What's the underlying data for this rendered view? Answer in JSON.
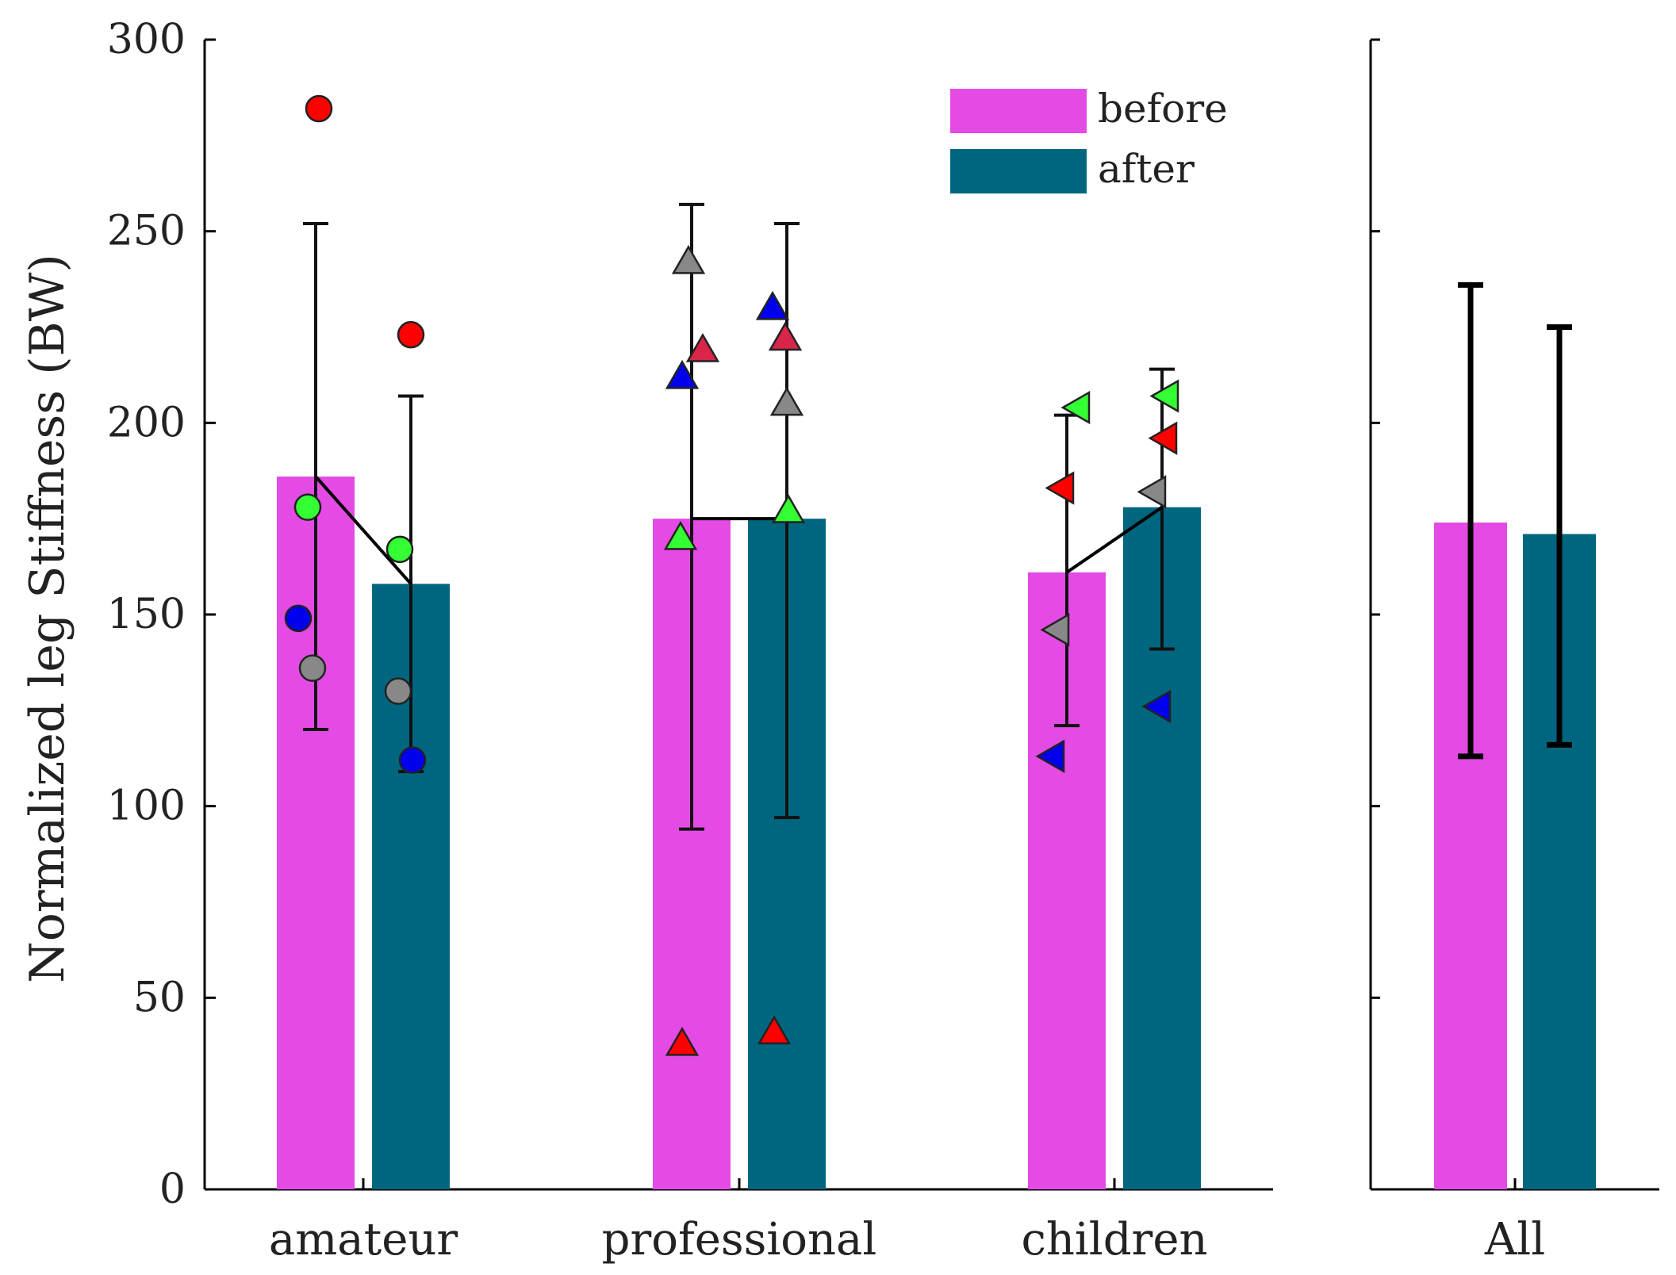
{
  "chart_data": {
    "type": "bar",
    "ylabel": "Normalized leg Stiffness (BW)",
    "ylim": [
      0,
      300
    ],
    "yticks": [
      0,
      50,
      100,
      150,
      200,
      250,
      300
    ],
    "categories": [
      "amateur",
      "professional",
      "children",
      "All"
    ],
    "colors": {
      "before": "#e44ae4",
      "after": "#006680"
    },
    "legend": {
      "position": "top-right",
      "entries": [
        "before",
        "after"
      ]
    },
    "series": [
      {
        "name": "before",
        "values": [
          186,
          175,
          161,
          174
        ],
        "err_low": [
          120,
          94,
          121,
          113
        ],
        "err_high": [
          252,
          257,
          202,
          236
        ]
      },
      {
        "name": "after",
        "values": [
          158,
          175,
          178,
          171
        ],
        "err_low": [
          109,
          97,
          141,
          116
        ],
        "err_high": [
          207,
          252,
          214,
          225
        ]
      }
    ],
    "groups": [
      {
        "category": "amateur",
        "marker": "circle",
        "points": [
          {
            "subject_color": "#ff0000",
            "before": 282,
            "after": 223
          },
          {
            "subject_color": "#33ff33",
            "before": 178,
            "after": 167
          },
          {
            "subject_color": "#0000ee",
            "before": 149,
            "after": 112
          },
          {
            "subject_color": "#888888",
            "before": 136,
            "after": 130
          }
        ]
      },
      {
        "category": "professional",
        "marker": "triangle-up",
        "points": [
          {
            "subject_color": "#888888",
            "before": 242,
            "after": 205
          },
          {
            "subject_color": "#d9254a",
            "before": 219,
            "after": 222
          },
          {
            "subject_color": "#0000ee",
            "before": 212,
            "after": 230
          },
          {
            "subject_color": "#33ff33",
            "before": 170,
            "after": 177
          },
          {
            "subject_color": "#ff0000",
            "before": 38,
            "after": 41
          }
        ]
      },
      {
        "category": "children",
        "marker": "triangle-left",
        "points": [
          {
            "subject_color": "#33ff33",
            "before": 204,
            "after": 207
          },
          {
            "subject_color": "#ff0000",
            "before": 183,
            "after": 196
          },
          {
            "subject_color": "#888888",
            "before": 146,
            "after": 182
          },
          {
            "subject_color": "#0000ee",
            "before": 113,
            "after": 126
          }
        ]
      }
    ]
  }
}
